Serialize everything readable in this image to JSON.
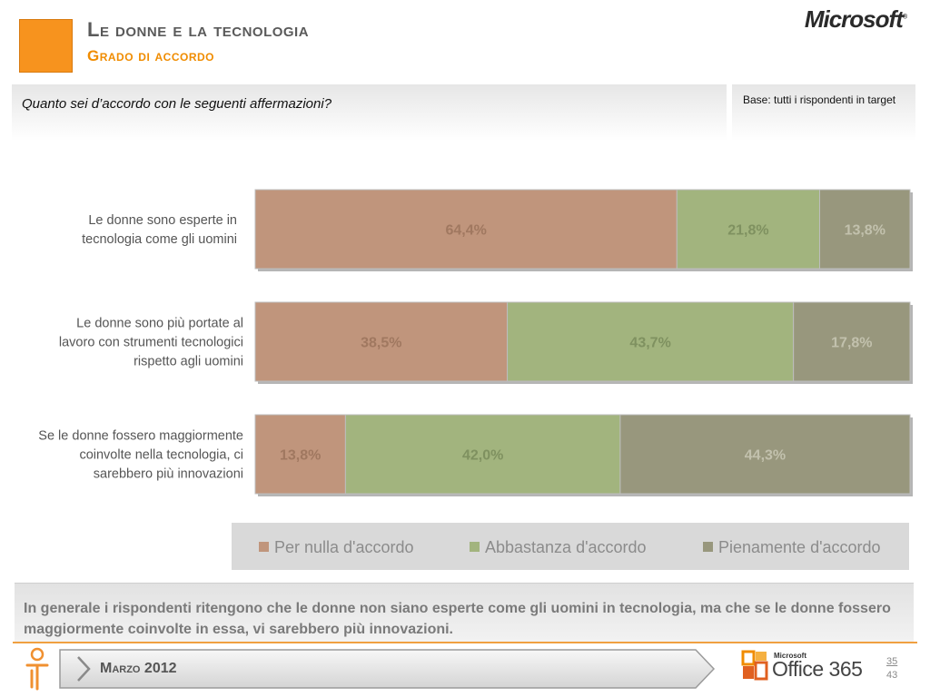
{
  "header": {
    "title": "Le donne e la tecnologia",
    "subtitle": "Grado di accordo",
    "brand": "Microsoft"
  },
  "question": "Quanto sei d’accordo con le seguenti affermazioni?",
  "base": "Base: tutti i rispondenti in target",
  "chart_data": {
    "type": "bar",
    "orientation": "horizontal",
    "stacked": true,
    "percent": true,
    "categories": [
      "Le donne sono esperte in tecnologia come gli uomini",
      "Le donne sono più portate al lavoro con strumenti tecnologici rispetto agli uomini",
      "Se le donne fossero maggiormente coinvolte nella tecnologia, ci sarebbero più innovazioni"
    ],
    "category_lines": [
      [
        "Le donne sono esperte in",
        "tecnologia come gli uomini"
      ],
      [
        "Le donne sono più portate al",
        "lavoro con strumenti tecnologici",
        "rispetto agli uomini"
      ],
      [
        "Se le donne fossero maggiormente",
        "coinvolte nella tecnologia, ci",
        "sarebbero più innovazioni"
      ]
    ],
    "series": [
      {
        "name": "Per nulla d'accordo",
        "color": "#c0957c",
        "label_color": "#a07860",
        "values": [
          64.4,
          38.5,
          13.8
        ],
        "labels": [
          "64,4%",
          "38,5%",
          "13,8%"
        ]
      },
      {
        "name": "Abbastanza d'accordo",
        "color": "#a2b47e",
        "label_color": "#7f9160",
        "values": [
          21.8,
          43.7,
          42.0
        ],
        "labels": [
          "21,8%",
          "43,7%",
          "42,0%"
        ]
      },
      {
        "name": "Pienamente d'accordo",
        "color": "#98977d",
        "label_color": "#c2c1ad",
        "values": [
          13.8,
          17.8,
          44.3
        ],
        "labels": [
          "13,8%",
          "17,8%",
          "44,3%"
        ]
      }
    ],
    "xlim": [
      0,
      100
    ],
    "legend": "bottom"
  },
  "conclusion": "In generale i rispondenti ritengono che le donne non siano esperte come gli uomini in tecnologia, ma che se le donne fossero maggiormente coinvolte in essa, vi sarebbero più innovazioni.",
  "footer": {
    "date": "Marzo 2012",
    "office_small": "Microsoft",
    "office_product": "Office 365",
    "page_current": "35",
    "page_total": "43"
  }
}
